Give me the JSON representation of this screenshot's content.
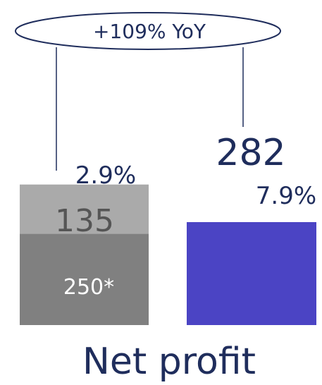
{
  "chart_data": {
    "type": "bar",
    "categories": [
      "",
      ""
    ],
    "series": [
      {
        "values": [
          250,
          282
        ]
      },
      {
        "values": [
          135,
          0
        ]
      }
    ],
    "value_labels": [
      "250*",
      "135",
      "282"
    ],
    "margin_labels": [
      "2.9%",
      "7.9%"
    ],
    "annotation": "+109% YoY",
    "title": "Net profit",
    "colors": {
      "left_bottom": "#808080",
      "left_top": "#aaaaaa",
      "right": "#4b44c4",
      "text": "#1f2d5c",
      "connector": "#1f2d5c"
    }
  }
}
